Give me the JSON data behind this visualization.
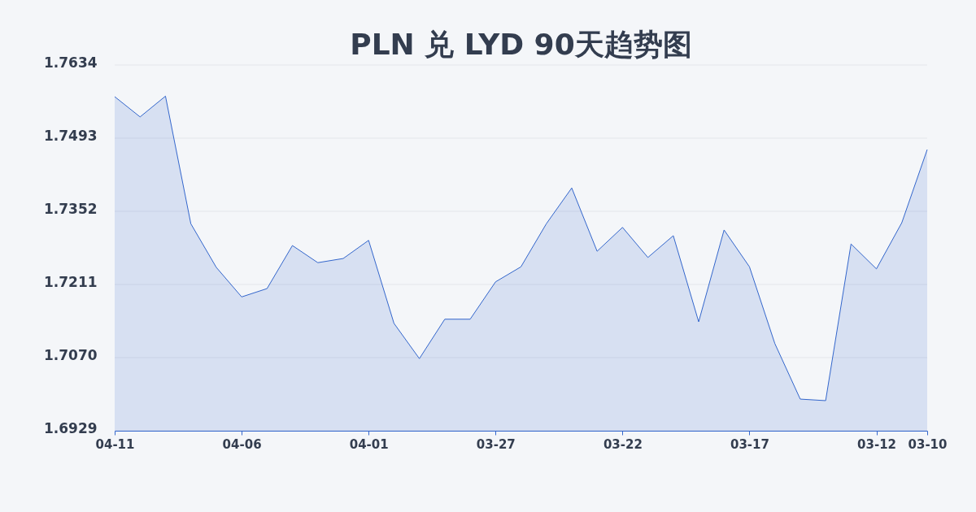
{
  "chart_data": {
    "type": "area",
    "title": "PLN 兑 LYD 90天趋势图",
    "categories": [
      "04-11",
      null,
      null,
      null,
      null,
      "04-06",
      null,
      null,
      null,
      null,
      "04-01",
      null,
      null,
      null,
      null,
      "03-27",
      null,
      null,
      null,
      null,
      "03-22",
      null,
      null,
      null,
      null,
      "03-17",
      null,
      null,
      null,
      null,
      "03-12",
      null,
      "03-10"
    ],
    "series": [
      {
        "color": "#3366cc",
        "values": [
          1.7573,
          1.7534,
          1.7574,
          1.7328,
          1.7244,
          1.7187,
          1.7203,
          1.7286,
          1.7253,
          1.7261,
          1.7296,
          1.7136,
          1.7068,
          1.7144,
          1.7144,
          1.7216,
          1.7245,
          1.7328,
          1.7397,
          1.7275,
          1.7321,
          1.7263,
          1.7305,
          1.7139,
          1.7316,
          1.7245,
          1.7097,
          1.699,
          1.6987,
          1.7289,
          1.7241,
          1.733,
          1.7471
        ]
      }
    ],
    "ylim": [
      1.6929,
      1.7634
    ],
    "yticks": [
      1.6929,
      {
        "value": 1.707,
        "label": "1.7070"
      },
      1.7211,
      1.7352,
      1.7493,
      1.7634
    ],
    "grid": "y"
  }
}
